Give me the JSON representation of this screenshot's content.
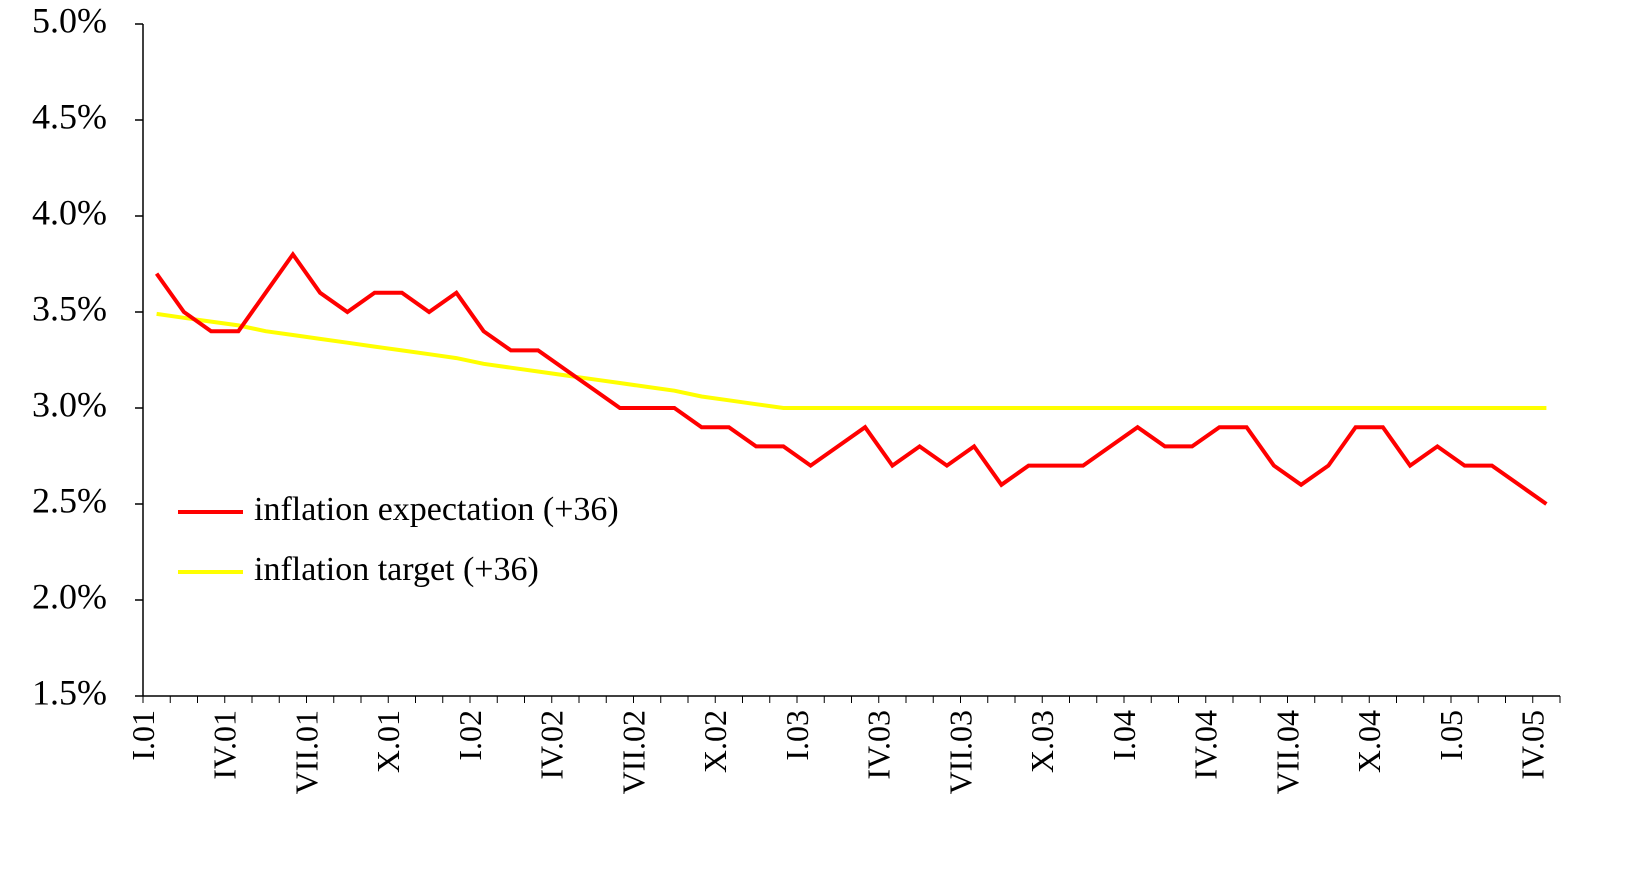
{
  "chart_data": {
    "type": "line",
    "categories": [
      "I.01",
      null,
      null,
      "IV.01",
      null,
      null,
      "VII.01",
      null,
      null,
      "X.01",
      null,
      null,
      "I.02",
      null,
      null,
      "IV.02",
      null,
      null,
      "VII.02",
      null,
      null,
      "X.02",
      null,
      null,
      "I.03",
      null,
      null,
      "IV.03",
      null,
      null,
      "VII.03",
      null,
      null,
      "X.03",
      null,
      null,
      "I.04",
      null,
      null,
      "IV.04",
      null,
      null,
      "VII.04",
      null,
      null,
      "X.04",
      null,
      null,
      "I.05",
      null,
      null,
      "IV.05"
    ],
    "series": [
      {
        "name": "inflation expectation (+36)",
        "color": "#ff0000",
        "values": [
          3.7,
          3.5,
          3.4,
          3.4,
          3.6,
          3.8,
          3.6,
          3.5,
          3.6,
          3.6,
          3.5,
          3.6,
          3.4,
          3.3,
          3.3,
          3.2,
          3.1,
          3.0,
          3.0,
          3.0,
          2.9,
          2.9,
          2.8,
          2.8,
          2.7,
          2.8,
          2.9,
          2.7,
          2.8,
          2.7,
          2.8,
          2.6,
          2.7,
          2.7,
          2.7,
          2.8,
          2.9,
          2.8,
          2.8,
          2.9,
          2.9,
          2.7,
          2.6,
          2.7,
          2.9,
          2.9,
          2.7,
          2.8,
          2.7,
          2.7,
          2.6,
          2.5
        ]
      },
      {
        "name": "inflation target (+36)",
        "color": "#ffff00",
        "values": [
          3.49,
          3.47,
          3.45,
          3.43,
          3.4,
          3.38,
          3.36,
          3.34,
          3.32,
          3.3,
          3.28,
          3.26,
          3.23,
          3.21,
          3.19,
          3.17,
          3.15,
          3.13,
          3.11,
          3.09,
          3.06,
          3.04,
          3.02,
          3.0,
          3.0,
          3.0,
          3.0,
          3.0,
          3.0,
          3.0,
          3.0,
          3.0,
          3.0,
          3.0,
          3.0,
          3.0,
          3.0,
          3.0,
          3.0,
          3.0,
          3.0,
          3.0,
          3.0,
          3.0,
          3.0,
          3.0,
          3.0,
          3.0,
          3.0,
          3.0,
          3.0,
          3.0
        ]
      }
    ],
    "ylim": [
      1.5,
      5.0
    ],
    "yticks": [
      {
        "value": 1.5,
        "label": "1.5%"
      },
      {
        "value": 2.0,
        "label": "2.0%"
      },
      {
        "value": 2.5,
        "label": "2.5%"
      },
      {
        "value": 3.0,
        "label": "3.0%"
      },
      {
        "value": 3.5,
        "label": "3.5%"
      },
      {
        "value": 4.0,
        "label": "4.0%"
      },
      {
        "value": 4.5,
        "label": "4.5%"
      },
      {
        "value": 5.0,
        "label": "5.0%"
      }
    ],
    "grid": false,
    "legend": "left"
  }
}
